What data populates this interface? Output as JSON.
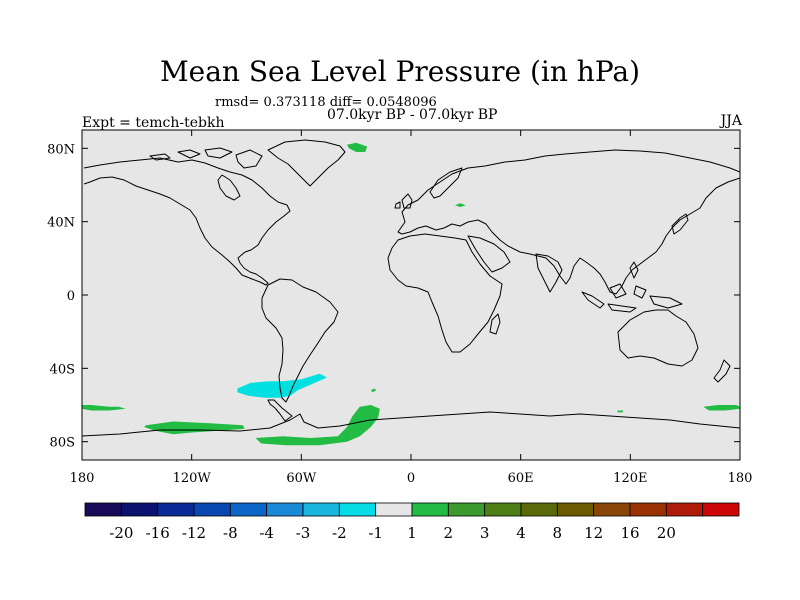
{
  "title": "Mean Sea Level Pressure (in hPa)",
  "stats_line": "rmsd= 0.373118 diff= 0.0548096",
  "period_line": "07.0kyr BP - 07.0kyr BP",
  "experiment_label": "Expt = temch-tebkh",
  "season_label": "JJA",
  "map": {
    "background_color": "#e6e6e6",
    "coastline_color": "#000000",
    "lon_range": [
      -180,
      180
    ],
    "lat_range": [
      -90,
      90
    ],
    "lon_ticks": [
      {
        "value": -180,
        "label": "180"
      },
      {
        "value": -120,
        "label": "120W"
      },
      {
        "value": -60,
        "label": "60W"
      },
      {
        "value": 0,
        "label": "0"
      },
      {
        "value": 60,
        "label": "60E"
      },
      {
        "value": 120,
        "label": "120E"
      },
      {
        "value": 180,
        "label": "180"
      }
    ],
    "lat_ticks": [
      {
        "value": 80,
        "label": "80N"
      },
      {
        "value": 40,
        "label": "40N"
      },
      {
        "value": 0,
        "label": "0"
      },
      {
        "value": -40,
        "label": "40S"
      },
      {
        "value": -80,
        "label": "80S"
      }
    ],
    "anomaly_regions": [
      {
        "name": "greenland-positive",
        "level": "1 to 2",
        "color": "#22bb44",
        "points": [
          [
            -35,
            82
          ],
          [
            -30,
            83
          ],
          [
            -24,
            81
          ],
          [
            -25,
            78
          ],
          [
            -30,
            78
          ],
          [
            -34,
            80
          ]
        ]
      },
      {
        "name": "caspian-positive",
        "level": "1 to 2",
        "color": "#22bb44",
        "points": [
          [
            24,
            49
          ],
          [
            27,
            50
          ],
          [
            30,
            49
          ],
          [
            27,
            48
          ]
        ]
      },
      {
        "name": "south-america-negative",
        "level": "-2 to -1",
        "color": "#00e0e0",
        "points": [
          [
            -95,
            -51
          ],
          [
            -88,
            -48
          ],
          [
            -78,
            -47
          ],
          [
            -70,
            -47
          ],
          [
            -60,
            -46
          ],
          [
            -50,
            -43
          ],
          [
            -46,
            -45
          ],
          [
            -55,
            -49
          ],
          [
            -62,
            -52
          ],
          [
            -66,
            -55
          ],
          [
            -72,
            -56
          ],
          [
            -80,
            -56
          ],
          [
            -89,
            -55
          ],
          [
            -95,
            -53
          ]
        ]
      },
      {
        "name": "south-pacific-positive",
        "level": "1 to 2",
        "color": "#22bb44",
        "points": [
          [
            -180,
            -60
          ],
          [
            -175,
            -60
          ],
          [
            -165,
            -61
          ],
          [
            -160,
            -61
          ],
          [
            -156,
            -62
          ],
          [
            -165,
            -63
          ],
          [
            -175,
            -63
          ],
          [
            -180,
            -62
          ]
        ]
      },
      {
        "name": "ross-sea-positive",
        "level": "1 to 2",
        "color": "#22bb44",
        "points": [
          [
            -145,
            -71
          ],
          [
            -130,
            -69
          ],
          [
            -110,
            -70
          ],
          [
            -92,
            -71
          ],
          [
            -91,
            -73
          ],
          [
            -105,
            -74
          ],
          [
            -120,
            -75
          ],
          [
            -130,
            -76
          ],
          [
            -140,
            -74
          ],
          [
            -146,
            -72
          ]
        ]
      },
      {
        "name": "weddell-positive",
        "level": "1 to 2",
        "color": "#22bb44",
        "points": [
          [
            -85,
            -78
          ],
          [
            -70,
            -77
          ],
          [
            -55,
            -78
          ],
          [
            -40,
            -77
          ],
          [
            -35,
            -72
          ],
          [
            -32,
            -66
          ],
          [
            -28,
            -61
          ],
          [
            -22,
            -60
          ],
          [
            -17,
            -62
          ],
          [
            -18,
            -67
          ],
          [
            -22,
            -72
          ],
          [
            -28,
            -77
          ],
          [
            -35,
            -80
          ],
          [
            -50,
            -82
          ],
          [
            -68,
            -82
          ],
          [
            -82,
            -81
          ]
        ]
      },
      {
        "name": "east-antarctic-positive",
        "level": "1 to 2",
        "color": "#22bb44",
        "points": [
          [
            160,
            -61
          ],
          [
            168,
            -60
          ],
          [
            178,
            -60
          ],
          [
            180,
            -61
          ],
          [
            180,
            -62
          ],
          [
            172,
            -63
          ],
          [
            163,
            -63
          ]
        ]
      },
      {
        "name": "subantarctic-dot",
        "level": "1 to 2",
        "color": "#22bb44",
        "points": [
          [
            -22,
            -52
          ],
          [
            -20,
            -51
          ],
          [
            -19,
            -52
          ],
          [
            -21,
            -53
          ]
        ]
      },
      {
        "name": "indian-dot",
        "level": "1 to 2",
        "color": "#22bb44",
        "points": [
          [
            113,
            -63
          ],
          [
            116,
            -63
          ],
          [
            116,
            -64
          ],
          [
            113,
            -64
          ]
        ]
      }
    ]
  },
  "colorbar": {
    "colors": [
      "#1a0a5a",
      "#0c1270",
      "#0a2a96",
      "#0848b0",
      "#0c66c8",
      "#1a8ad6",
      "#18b6e0",
      "#06dce6",
      "#e6e6e6",
      "#22bb44",
      "#3c9a2e",
      "#4e7e16",
      "#5a6a0a",
      "#6a5a00",
      "#884608",
      "#9a3204",
      "#b01a08",
      "#cc0606"
    ],
    "labels": [
      "-20",
      "-16",
      "-12",
      "-8",
      "-4",
      "-3",
      "-2",
      "-1",
      "1",
      "2",
      "3",
      "4",
      "8",
      "12",
      "16",
      "20"
    ]
  }
}
